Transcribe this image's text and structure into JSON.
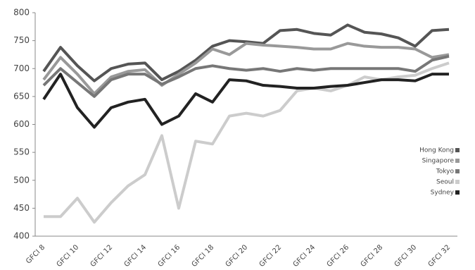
{
  "chart_data": {
    "type": "line",
    "categories": [
      "GFCI 8",
      null,
      "GFCI 10",
      null,
      "GFCI 12",
      null,
      "GFCI 14",
      null,
      "GFCI 16",
      null,
      "GFCI 18",
      null,
      "GFCI 20",
      null,
      "GFCI 22",
      null,
      "GFCI 24",
      null,
      "GFCI 26",
      null,
      "GFCI 28",
      null,
      "GFCI 30",
      null,
      "GFCI 32"
    ],
    "series": [
      {
        "name": "Hong Kong",
        "color": "#555555",
        "values": [
          695,
          738,
          705,
          678,
          700,
          708,
          710,
          680,
          695,
          715,
          740,
          750,
          748,
          745,
          768,
          770,
          763,
          760,
          778,
          765,
          762,
          755,
          740,
          768,
          770
        ]
      },
      {
        "name": "Singapore",
        "color": "#999999",
        "values": [
          680,
          720,
          690,
          655,
          685,
          695,
          698,
          670,
          690,
          710,
          735,
          725,
          745,
          742,
          740,
          738,
          735,
          735,
          745,
          740,
          738,
          738,
          735,
          720,
          725
        ]
      },
      {
        "name": "Tokyo",
        "color": "#777777",
        "values": [
          670,
          700,
          675,
          650,
          680,
          690,
          690,
          672,
          685,
          700,
          705,
          700,
          697,
          700,
          695,
          700,
          697,
          700,
          700,
          700,
          700,
          700,
          695,
          715,
          722
        ]
      },
      {
        "name": "Seoul",
        "color": "#cccccc",
        "values": [
          435,
          435,
          468,
          425,
          460,
          490,
          510,
          580,
          450,
          570,
          565,
          615,
          620,
          615,
          625,
          660,
          665,
          660,
          670,
          685,
          680,
          685,
          688,
          700,
          710
        ]
      },
      {
        "name": "Sydney",
        "color": "#222222",
        "values": [
          645,
          690,
          630,
          595,
          630,
          640,
          645,
          600,
          615,
          655,
          640,
          680,
          678,
          670,
          668,
          665,
          665,
          668,
          670,
          675,
          680,
          680,
          678,
          690,
          690
        ]
      }
    ],
    "ylim": [
      400,
      800
    ],
    "yticks": [
      400,
      450,
      500,
      550,
      600,
      650,
      700,
      750,
      800
    ]
  }
}
